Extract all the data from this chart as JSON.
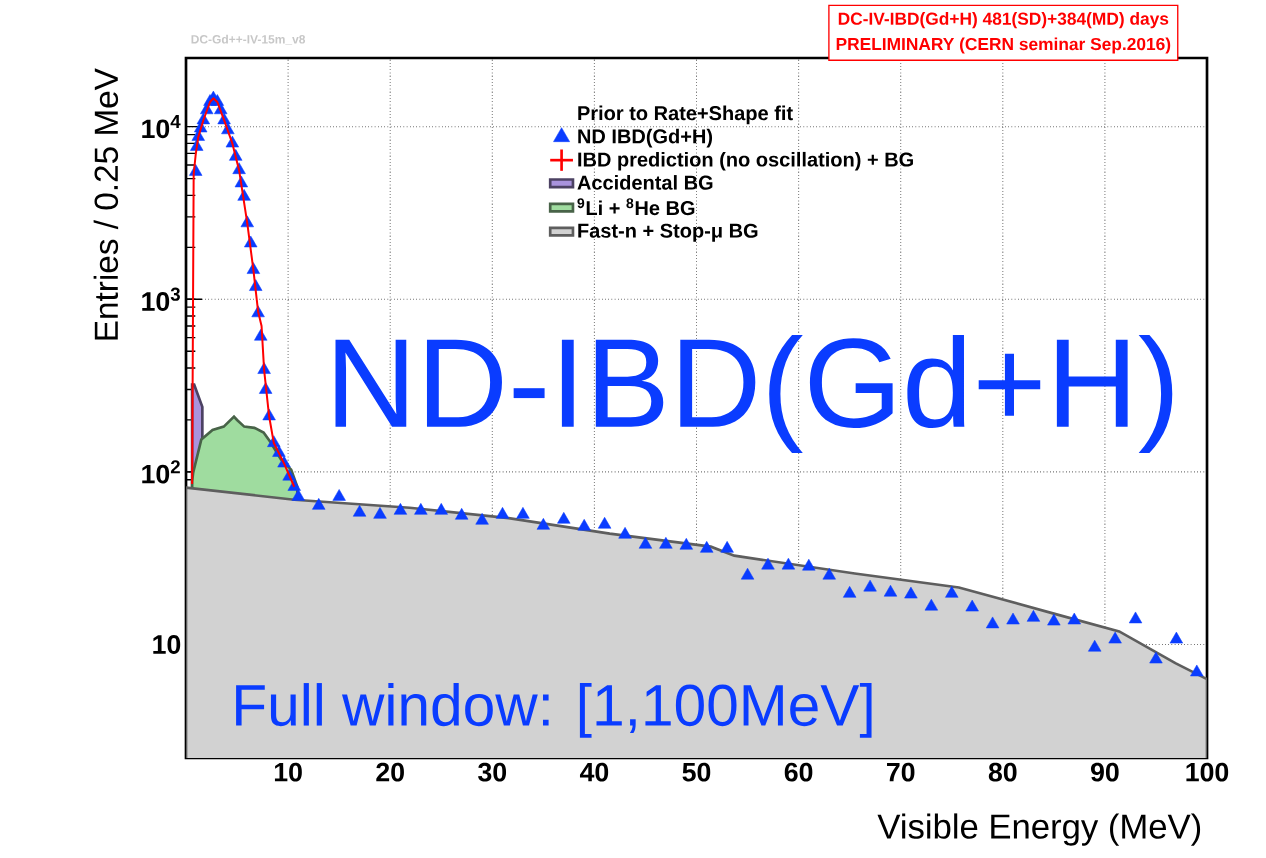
{
  "chart_data": {
    "type": "line",
    "title": "DC-IV-IBD(Gd+H)  481(SD)+384(MD) days",
    "subtitle": "PRELIMINARY (CERN seminar Sep.2016)",
    "xlabel": "Visible Energy (MeV)",
    "ylabel": "Entries / 0.25 MeV",
    "legend_title": "Prior to Rate+Shape fit",
    "annotations": [
      "DC-Gd++-IV-15m_v8",
      "ND-IBD(Gd+H)",
      "Full window: [1,100MeV]"
    ],
    "xlim": [
      0,
      100
    ],
    "ylim": [
      2.2,
      25000
    ],
    "xticks": [
      10,
      20,
      30,
      40,
      50,
      60,
      70,
      80,
      90,
      100
    ],
    "yticks": [
      10,
      {
        "value": 100,
        "label": "10$^{2}$"
      },
      {
        "value": 1000,
        "label": "10$^{3}$"
      },
      {
        "value": 10000,
        "label": "10$^{4}$"
      }
    ],
    "log": "y",
    "grid": true,
    "legend": "top right",
    "series": [
      {
        "name": "ND IBD(Gd+H)",
        "type": "scatter",
        "marker": "triangle",
        "color": "#0a3cff",
        "x": [
          0.95,
          1.05,
          1.2,
          1.44,
          1.7,
          2.03,
          2.35,
          2.68,
          3.07,
          3.4,
          3.73,
          4.1,
          4.54,
          4.87,
          5.2,
          5.42,
          5.69,
          6.0,
          6.34,
          6.6,
          6.83,
          7.06,
          7.32,
          7.65,
          7.8,
          8.14,
          8.6,
          9.1,
          9.6,
          10.1,
          10.6,
          11,
          13,
          15,
          17,
          19,
          21,
          23,
          25,
          27,
          29,
          31,
          33,
          35,
          37,
          39,
          41,
          43,
          45,
          47,
          49,
          51,
          53,
          55,
          57,
          59,
          61,
          63,
          65,
          67,
          69,
          71,
          73,
          75,
          77,
          79,
          81,
          83,
          85,
          87,
          89,
          91,
          93,
          95,
          97,
          99
        ],
        "values": [
          5480,
          7650,
          8740,
          9780,
          10900,
          12470,
          13930,
          14580,
          13930,
          12470,
          10900,
          9550,
          8000,
          6700,
          5610,
          4700,
          3930,
          2760,
          2110,
          1480,
          1180,
          831,
          608,
          390,
          299,
          210,
          147,
          129,
          112,
          94,
          82,
          71.8,
          63.7,
          71.8,
          58.1,
          56.5,
          59.6,
          59.6,
          59.6,
          55.8,
          52.2,
          56.5,
          56.5,
          48.8,
          52.9,
          48.2,
          49.5,
          43.3,
          37.9,
          37.9,
          37.4,
          35.9,
          35.9,
          25.1,
          28.7,
          28.7,
          28.3,
          25.1,
          19.7,
          21.4,
          20.0,
          19.5,
          16.6,
          19.7,
          16.4,
          13.1,
          13.8,
          14.3,
          13.6,
          13.8,
          9.6,
          10.7,
          14.0,
          8.2,
          10.7,
          6.9
        ]
      },
      {
        "name": "IBD prediction (no oscillation) + BG",
        "color": "#ff0000",
        "x": [
          0.6,
          0.75,
          0.95,
          1.2,
          1.7,
          2.35,
          2.68,
          3.07,
          3.73,
          4.54,
          5.2,
          6.0,
          6.6,
          7.06,
          7.4,
          7.65,
          8.14,
          8.6,
          9.6,
          10.6
        ],
        "values": [
          85,
          5300,
          6900,
          8700,
          10900,
          13900,
          14600,
          13900,
          10900,
          8000,
          5600,
          2760,
          1480,
          850,
          700,
          390,
          210,
          147,
          112,
          82
        ]
      },
      {
        "name": "Accidental BG",
        "type": "area",
        "color": "#a993dd",
        "x": [
          0.6,
          0.8,
          1.6
        ],
        "values": [
          320,
          320,
          238
        ]
      },
      {
        "name": "$^{9}$Li + $^{8}$He BG",
        "type": "area",
        "color": "#9fdc9f",
        "x": [
          0.6,
          0.7,
          1.5,
          2.6,
          3.7,
          4.7,
          5.0,
          5.7,
          6.7,
          7.6,
          8.3,
          9.3,
          10.3,
          10.9
        ],
        "values": [
          88,
          99,
          154,
          175,
          183,
          209,
          200,
          183,
          180,
          169,
          148,
          118,
          103,
          82
        ]
      },
      {
        "name": "Fast-n + Stop-μ BG",
        "type": "area",
        "color": "#d2d2d2",
        "x": [
          0,
          10.6,
          21.9,
          31.6,
          41.5,
          51.4,
          53.7,
          65.5,
          75.7,
          85,
          91.4,
          96.9,
          100
        ],
        "values": [
          81,
          69,
          62,
          54,
          43.9,
          36.9,
          32.7,
          25.8,
          21.4,
          15.1,
          11.9,
          7.8,
          6.3
        ]
      }
    ]
  }
}
